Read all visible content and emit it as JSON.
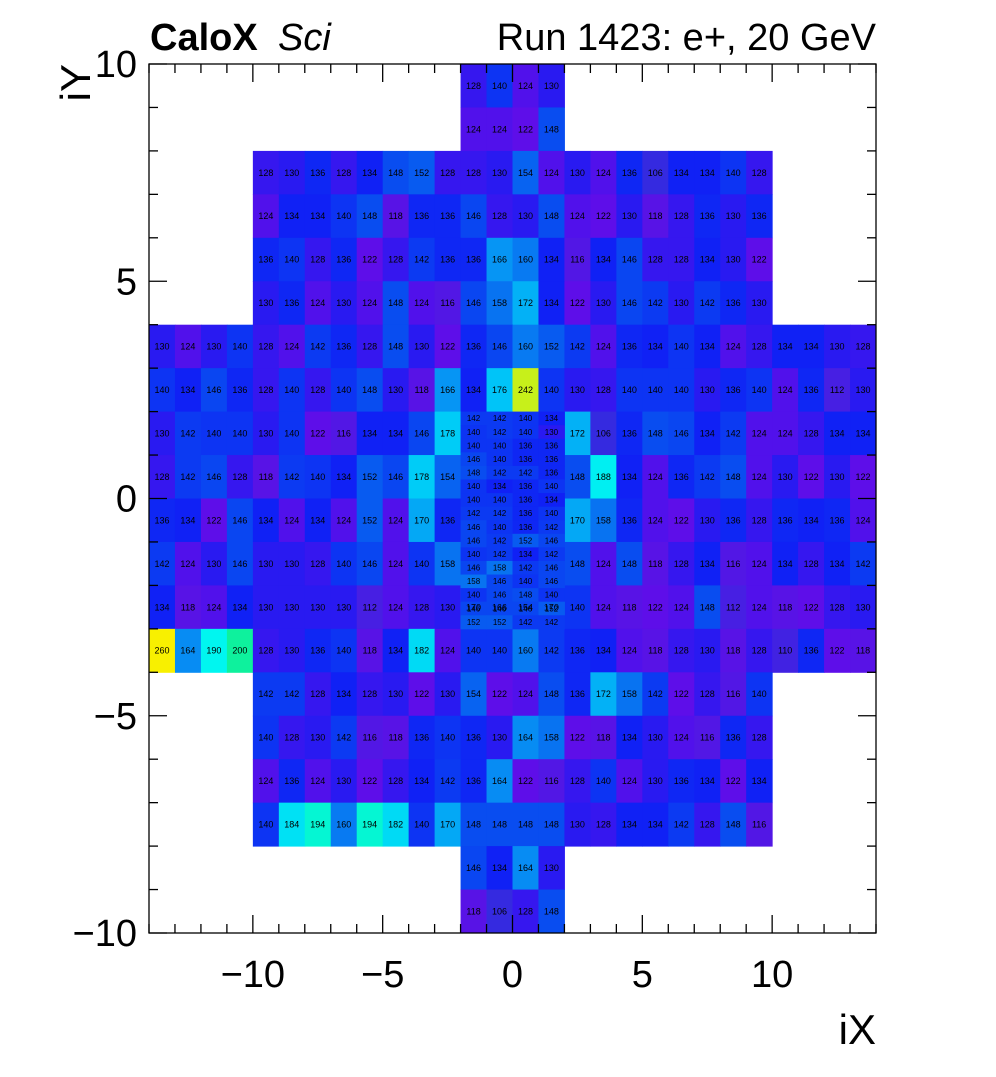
{
  "header": {
    "experiment_bold": "CaloX",
    "experiment_italic": "Sci",
    "run_label": "Run 1423: e+, 20 GeV"
  },
  "chart_data": {
    "type": "heatmap",
    "title": "",
    "xlabel": "iX",
    "ylabel": "iY",
    "xlim": [
      -14,
      14
    ],
    "ylim": [
      -10,
      10
    ],
    "x_ticks": [
      -10,
      -5,
      0,
      5,
      10
    ],
    "x_tick_labels": [
      "−10",
      "−5",
      "0",
      "5",
      "10"
    ],
    "y_ticks": [
      -10,
      -5,
      0,
      5,
      10
    ],
    "y_tick_labels": [
      "−10",
      "−5",
      "0",
      "5",
      "10"
    ],
    "colorscale": "kBird (blue-purple → blue → cyan → green → yellow)",
    "value_range": [
      106,
      260
    ],
    "grid": false,
    "coarse_cells_note": "each value is at cell [iX-low, iY-low], cell size 1x1",
    "rows": [
      {
        "y": 9,
        "x0": -2,
        "values": [
          128,
          140,
          124,
          130
        ]
      },
      {
        "y": 8,
        "x0": -2,
        "values": [
          124,
          124,
          122,
          148
        ]
      },
      {
        "y": 7,
        "x0": -10,
        "values": [
          128,
          130,
          136,
          128,
          134,
          148,
          152,
          128,
          128,
          130,
          154,
          124,
          130,
          124,
          136,
          106,
          134,
          134,
          140,
          128
        ]
      },
      {
        "y": 6,
        "x0": -10,
        "values": [
          124,
          134,
          134,
          140,
          148,
          118,
          136,
          136,
          146,
          128,
          130,
          148,
          124,
          122,
          130,
          118,
          128,
          136,
          130,
          136
        ]
      },
      {
        "y": 5,
        "x0": -10,
        "values": [
          136,
          140,
          128,
          136,
          122,
          128,
          142,
          136,
          136,
          166,
          160,
          134,
          116,
          134,
          146,
          128,
          128,
          134,
          130,
          122
        ]
      },
      {
        "y": 4,
        "x0": -10,
        "values": [
          130,
          136,
          124,
          130,
          124,
          148,
          124,
          116,
          146,
          158,
          172,
          134,
          122,
          130,
          146,
          142,
          130,
          142,
          136,
          130
        ]
      },
      {
        "y": 3,
        "x0": -14,
        "values": [
          130,
          124,
          130,
          140,
          128,
          124,
          142,
          136,
          128,
          148,
          130,
          122,
          136,
          146,
          160,
          152,
          142,
          124,
          136,
          134,
          140,
          134,
          124,
          128,
          134,
          134,
          130,
          128
        ]
      },
      {
        "y": 2,
        "x0": -14,
        "values": [
          140,
          134,
          146,
          136,
          128,
          140,
          128,
          140,
          148,
          130,
          118,
          166,
          134,
          176,
          242,
          140,
          130,
          128,
          140,
          140,
          140,
          130,
          136,
          140,
          124,
          136,
          112,
          130
        ]
      },
      {
        "y": 1,
        "x0": -14,
        "values": [
          130,
          142,
          140,
          140,
          130,
          140,
          122,
          116,
          134,
          134,
          146,
          178,
          null,
          null,
          null,
          null,
          172,
          106,
          136,
          148,
          146,
          134,
          142,
          124,
          124,
          128,
          134,
          134
        ]
      },
      {
        "y": 0,
        "x0": -14,
        "values": [
          128,
          142,
          146,
          128,
          118,
          142,
          140,
          134,
          152,
          146,
          178,
          154,
          null,
          null,
          null,
          null,
          148,
          188,
          134,
          124,
          136,
          142,
          148,
          124,
          130,
          122,
          130,
          122
        ]
      },
      {
        "y": -1,
        "x0": -14,
        "values": [
          136,
          134,
          122,
          146,
          134,
          124,
          134,
          124,
          152,
          124,
          170,
          136,
          null,
          null,
          null,
          null,
          170,
          158,
          136,
          124,
          122,
          130,
          136,
          128,
          136,
          134,
          136,
          124
        ]
      },
      {
        "y": -2,
        "x0": -14,
        "values": [
          142,
          124,
          130,
          146,
          130,
          130,
          128,
          140,
          146,
          124,
          140,
          158,
          null,
          null,
          null,
          null,
          148,
          124,
          148,
          118,
          128,
          134,
          116,
          124,
          134,
          128,
          134,
          142
        ]
      },
      {
        "y": -3,
        "x0": -14,
        "values": [
          134,
          118,
          124,
          134,
          130,
          130,
          130,
          130,
          112,
          124,
          128,
          130,
          170,
          166,
          154,
          170,
          140,
          124,
          118,
          122,
          124,
          148,
          112,
          124,
          118,
          122,
          128,
          130
        ]
      },
      {
        "y": -4,
        "x0": -14,
        "values": [
          260,
          164,
          190,
          200,
          128,
          130,
          136,
          140,
          118,
          134,
          182,
          124,
          140,
          140,
          160,
          142,
          136,
          134,
          124,
          118,
          128,
          130,
          118,
          128,
          110,
          136,
          122,
          118
        ]
      },
      {
        "y": -5,
        "x0": -10,
        "values": [
          142,
          142,
          128,
          134,
          128,
          130,
          122,
          130,
          154,
          122,
          124,
          148,
          136,
          172,
          158,
          142,
          122,
          128,
          116,
          140
        ]
      },
      {
        "y": -6,
        "x0": -10,
        "values": [
          140,
          128,
          130,
          142,
          116,
          118,
          136,
          140,
          136,
          130,
          164,
          158,
          122,
          118,
          134,
          130,
          124,
          116,
          136,
          128
        ]
      },
      {
        "y": -7,
        "x0": -10,
        "values": [
          124,
          136,
          124,
          130,
          122,
          128,
          134,
          142,
          136,
          164,
          122,
          116,
          128,
          140,
          124,
          130,
          136,
          134,
          122,
          134
        ]
      },
      {
        "y": -8,
        "x0": -10,
        "values": [
          140,
          184,
          194,
          160,
          194,
          182,
          140,
          170,
          148,
          148,
          148,
          148,
          130,
          128,
          134,
          134,
          142,
          128,
          148,
          116
        ]
      },
      {
        "y": -9,
        "x0": -2,
        "values": [
          146,
          134,
          164,
          130
        ]
      },
      {
        "y": -10,
        "x0": -2,
        "values": [
          118,
          106,
          128,
          148
        ]
      }
    ],
    "fine_region": {
      "x0": -2,
      "x1": 2,
      "y0": -3,
      "y1": 2,
      "cols": 4,
      "rows_top_to_bottom": [
        [
          142,
          142,
          140,
          134
        ],
        [
          140,
          142,
          140,
          130
        ],
        [
          140,
          140,
          136,
          136
        ],
        [
          146,
          140,
          136,
          136
        ],
        [
          148,
          142,
          142,
          136
        ],
        [
          140,
          134,
          136,
          140
        ],
        [
          140,
          140,
          136,
          134
        ],
        [
          142,
          142,
          136,
          140
        ],
        [
          146,
          140,
          136,
          142
        ],
        [
          146,
          142,
          152,
          146
        ],
        [
          140,
          142,
          134,
          142
        ],
        [
          146,
          158,
          142,
          146
        ],
        [
          158,
          146,
          140,
          146
        ],
        [
          140,
          146,
          148,
          140
        ],
        [
          146,
          146,
          146,
          152
        ],
        [
          152,
          152,
          142,
          142
        ]
      ]
    }
  }
}
